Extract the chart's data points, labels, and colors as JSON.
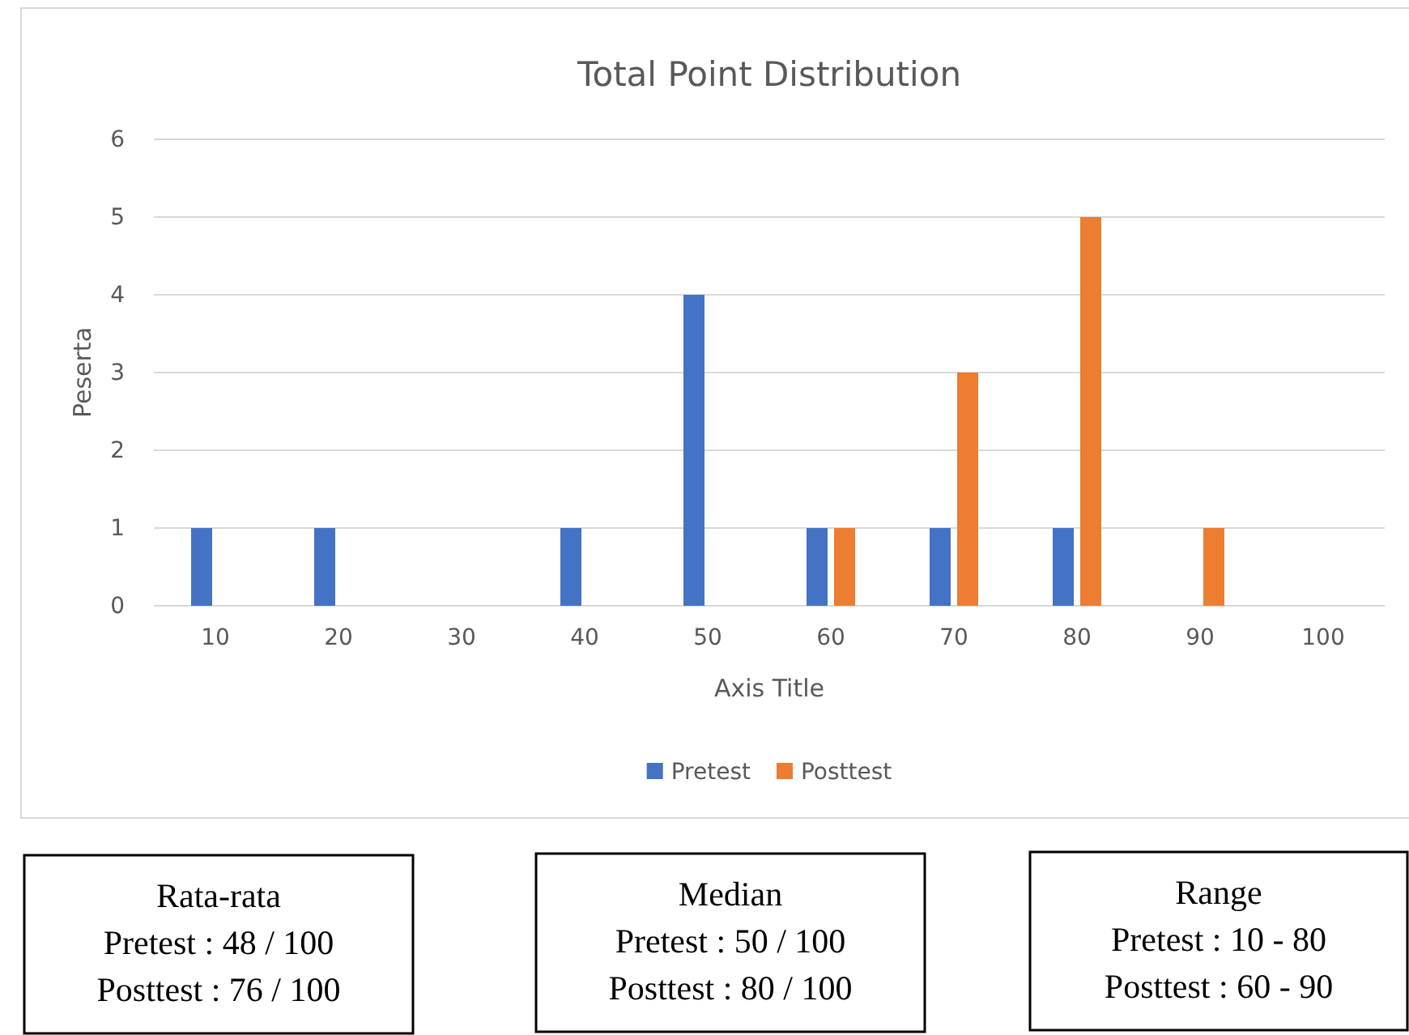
{
  "chart_data": {
    "type": "bar",
    "title": "Total Point Distribution",
    "xlabel": "Axis Title",
    "ylabel": "Peserta",
    "categories": [
      "10",
      "20",
      "30",
      "40",
      "50",
      "60",
      "70",
      "80",
      "90",
      "100"
    ],
    "series": [
      {
        "name": "Pretest",
        "color": "#4472c4",
        "values": [
          1,
          1,
          0,
          1,
          4,
          1,
          1,
          1,
          0,
          0
        ]
      },
      {
        "name": "Posttest",
        "color": "#ed7d31",
        "values": [
          0,
          0,
          0,
          0,
          0,
          1,
          3,
          5,
          1,
          0
        ]
      }
    ],
    "ylim": [
      0,
      6
    ],
    "yticks": [
      0,
      1,
      2,
      3,
      4,
      5,
      6
    ],
    "grid": "y",
    "legend": "bottom",
    "annotations": [
      "Rata-rata\nPretest : 48 / 100\nPosttest : 76 / 100",
      "Median\nPretest : 50 / 100\nPosttest : 80 / 100",
      "Range\nPretest : 10 - 80\nPosttest : 60 - 90"
    ]
  }
}
